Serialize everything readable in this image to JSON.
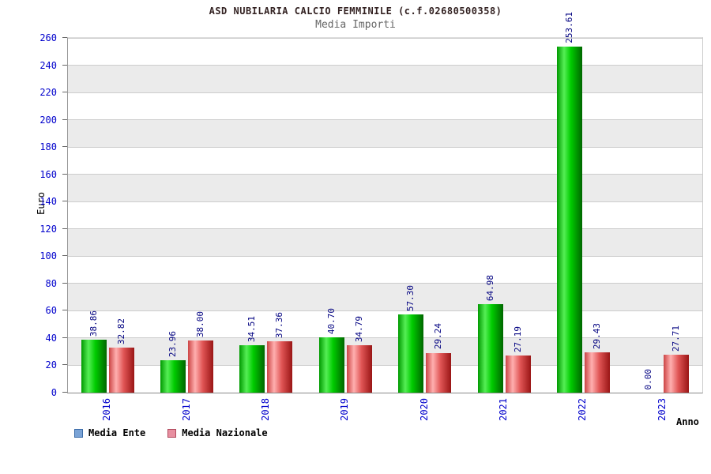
{
  "chart_data": {
    "type": "bar",
    "title": "ASD NUBILARIA CALCIO FEMMINILE (c.f.02680500358)",
    "subtitle": "Media Importi",
    "xlabel": "Anno",
    "ylabel": "Euro",
    "categories": [
      "2016",
      "2017",
      "2018",
      "2019",
      "2020",
      "2021",
      "2022",
      "2023"
    ],
    "series": [
      {
        "name": "Media Ente",
        "values": [
          38.86,
          23.96,
          34.51,
          40.7,
          57.3,
          64.98,
          253.61,
          0.0
        ]
      },
      {
        "name": "Media Nazionale",
        "values": [
          32.82,
          38.0,
          37.36,
          34.79,
          29.24,
          27.19,
          29.43,
          27.71
        ]
      }
    ],
    "ylim": [
      0,
      260
    ],
    "ytick_step": 20,
    "y_ticks": [
      0,
      20,
      40,
      60,
      80,
      100,
      120,
      140,
      160,
      180,
      200,
      220,
      240,
      260
    ],
    "grid": "horizontal",
    "legend_position": "bottom-left"
  },
  "legend": {
    "items": [
      {
        "label": "Media Ente",
        "swatch_color": "#7aa3d6",
        "swatch_border": "#3c6ca8"
      },
      {
        "label": "Media Nazionale",
        "swatch_color": "#e78fa0",
        "swatch_border": "#b14a5e"
      }
    ]
  },
  "colors": {
    "bar_media_ente": "#00cc00",
    "bar_media_nazionale": "#dd4444",
    "value_label": "#000080",
    "tick_label": "#0000cc",
    "band": "#ebebeb",
    "gridline": "#cccccc"
  }
}
